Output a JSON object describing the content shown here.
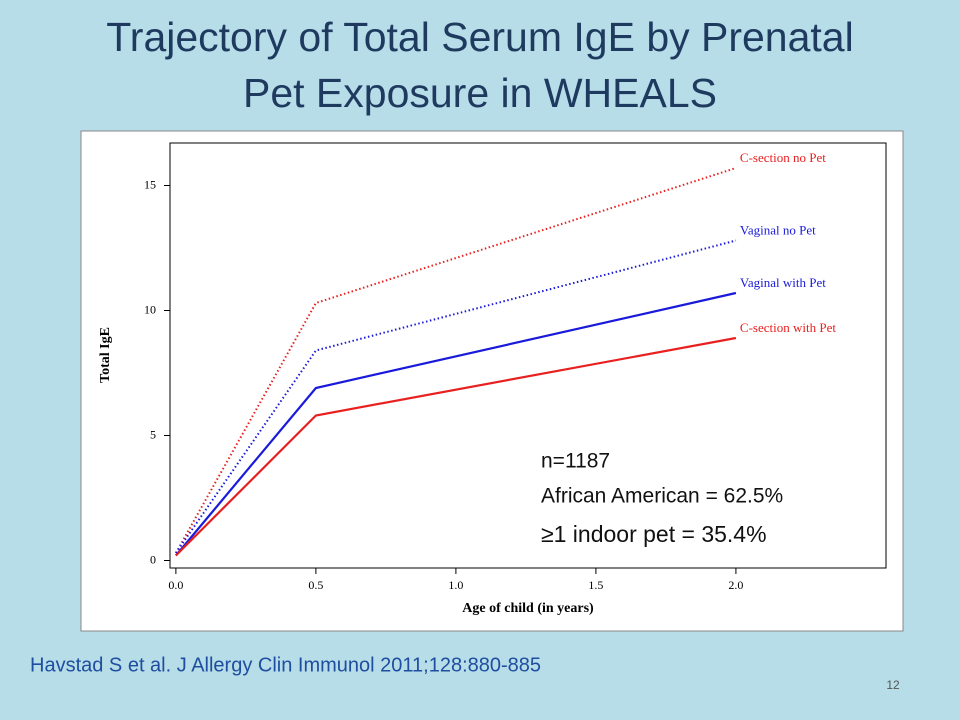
{
  "chart_data": {
    "type": "line",
    "title": "Trajectory of Total Serum IgE by Prenatal Pet Exposure in WHEALS",
    "x_label": "Age of child (in years)",
    "y_label": "Total IgE",
    "x": [
      0,
      0.5,
      2.0
    ],
    "series": [
      {
        "name": "C-section no Pet",
        "color": "#e8201f",
        "style": "dotted",
        "values": [
          0.3,
          10.3,
          15.7
        ]
      },
      {
        "name": "Vaginal no Pet",
        "color": "#1a1adb",
        "style": "dotted",
        "values": [
          0.3,
          8.4,
          12.8
        ]
      },
      {
        "name": "Vaginal with Pet",
        "color": "#1a1adb",
        "style": "solid",
        "values": [
          0.2,
          6.9,
          10.7
        ]
      },
      {
        "name": "C-section with Pet",
        "color": "#e8201f",
        "style": "solid",
        "values": [
          0.2,
          5.8,
          8.9
        ]
      }
    ],
    "xlim": [
      -0.021,
      2.536
    ],
    "ylim": [
      -0.3,
      16.7
    ],
    "xticks": [
      {
        "value": 0,
        "label": "0.0"
      },
      {
        "value": 0.5,
        "label": "0.5"
      },
      {
        "value": 1,
        "label": "1.0"
      },
      {
        "value": 1.5,
        "label": "1.5"
      },
      {
        "value": 2,
        "label": "2.0"
      }
    ],
    "yticks": [
      0,
      5,
      10,
      15
    ],
    "annotations": [
      "n=1187",
      "African American = 62.5%",
      "≥1 indoor pet = 35.4%"
    ],
    "citation": "Havstad S et al. J Allergy Clin Immunol 2011;128:880-885",
    "page_number": "12"
  }
}
